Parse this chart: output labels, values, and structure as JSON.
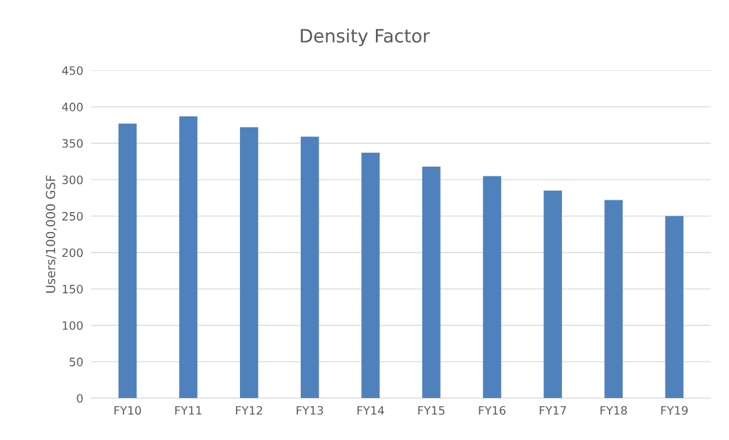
{
  "chart_data": {
    "type": "bar",
    "title": "Density Factor",
    "ylabel": "Users/100,000 GSF",
    "categories": [
      "FY10",
      "FY11",
      "FY12",
      "FY13",
      "FY14",
      "FY15",
      "FY16",
      "FY17",
      "FY18",
      "FY19"
    ],
    "values": [
      377,
      387,
      372,
      359,
      337,
      318,
      305,
      285,
      272,
      250
    ],
    "color": "#4f81bd",
    "ylim": [
      0,
      450
    ],
    "yticks": [
      0,
      50,
      100,
      150,
      200,
      250,
      300,
      350,
      400,
      450
    ],
    "grid": "y",
    "legend": false
  }
}
